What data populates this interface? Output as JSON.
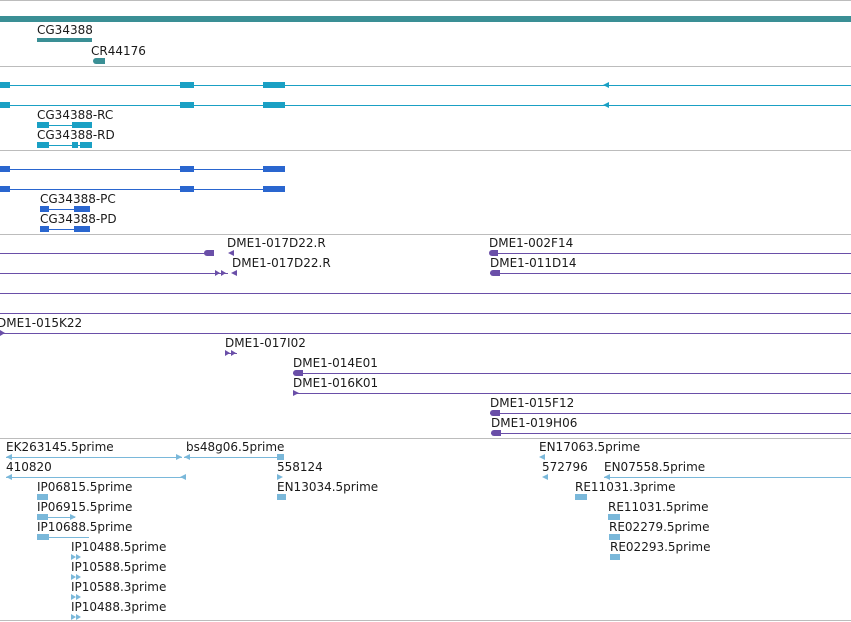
{
  "colors": {
    "gene_track": "#3a8f95",
    "transcript": "#1aa0c4",
    "protein": "#2a66cf",
    "clone": "#6a4fa8",
    "est": "#7ab8da",
    "separator": "#bcbcbc"
  },
  "tracks": {
    "genes": [
      "CG34388",
      "CR44176"
    ],
    "transcripts": [
      "CG34388-RC",
      "CG34388-RD"
    ],
    "proteins": [
      "CG34388-PC",
      "CG34388-PD"
    ],
    "clones": [
      "DME1-017D22.R",
      "DME1-017D22.R",
      "DME1-002F14",
      "DME1-011D14",
      "DME1-015K22",
      "DME1-017I02",
      "DME1-014E01",
      "DME1-016K01",
      "DME1-015F12",
      "DME1-019H06"
    ],
    "ests": [
      "EK263145.5prime",
      "bs48g06.5prime",
      "EN17063.5prime",
      "410820",
      "558124",
      "572796",
      "EN07558.5prime",
      "IP06815.5prime",
      "EN13034.5prime",
      "RE11031.3prime",
      "IP06915.5prime",
      "RE11031.5prime",
      "IP10688.5prime",
      "RE02279.5prime",
      "IP10488.5prime",
      "RE02293.5prime",
      "IP10588.5prime",
      "IP10588.3prime",
      "IP10488.3prime"
    ]
  }
}
